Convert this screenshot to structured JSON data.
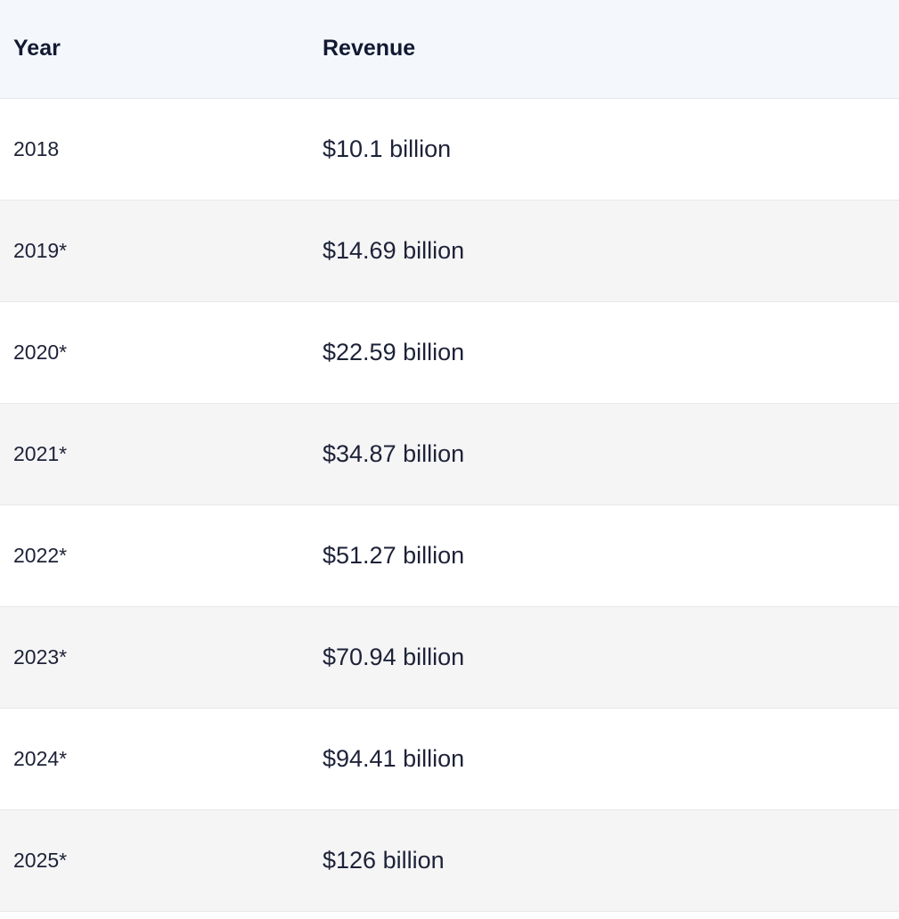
{
  "table": {
    "headers": {
      "year": "Year",
      "revenue": "Revenue"
    },
    "rows": [
      {
        "year": "2018",
        "revenue": "$10.1 billion"
      },
      {
        "year": "2019*",
        "revenue": "$14.69 billion"
      },
      {
        "year": "2020*",
        "revenue": "$22.59 billion"
      },
      {
        "year": "2021*",
        "revenue": "$34.87 billion"
      },
      {
        "year": "2022*",
        "revenue": "$51.27 billion"
      },
      {
        "year": "2023*",
        "revenue": "$70.94 billion"
      },
      {
        "year": "2024*",
        "revenue": "$94.41 billion"
      },
      {
        "year": "2025*",
        "revenue": "$126 billion"
      }
    ]
  },
  "colors": {
    "header_bg": "#f4f8fc",
    "row_alt_bg": "#f5f5f6",
    "text": "#1d2238"
  }
}
